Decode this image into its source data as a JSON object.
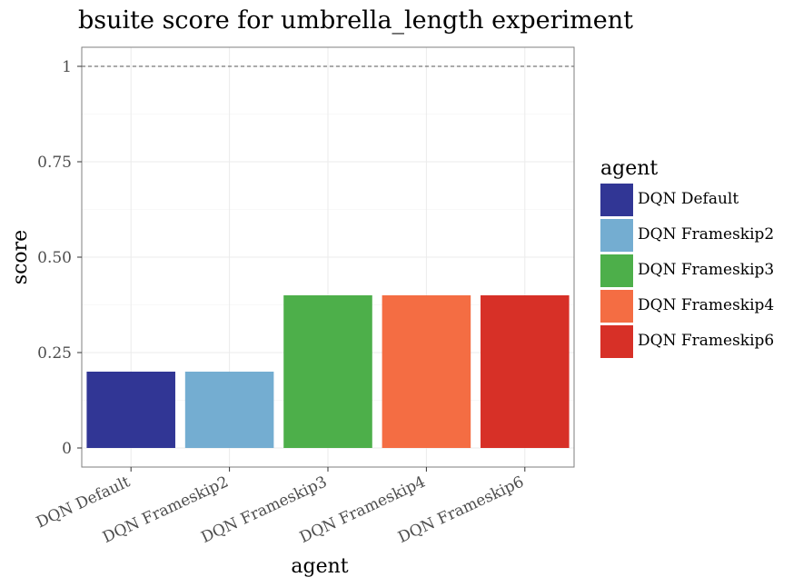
{
  "chart_data": {
    "type": "bar",
    "title": "bsuite score for umbrella_length experiment",
    "xlabel": "agent",
    "ylabel": "score",
    "categories": [
      "DQN Default",
      "DQN Frameskip2",
      "DQN Frameskip3",
      "DQN Frameskip4",
      "DQN Frameskip6"
    ],
    "values": [
      0.2,
      0.2,
      0.4,
      0.4,
      0.4
    ],
    "colors": [
      "#313695",
      "#74add1",
      "#4daf4a",
      "#f46d43",
      "#d73027"
    ],
    "ylim": [
      -0.05,
      1.05
    ],
    "yticks": [
      0,
      0.25,
      0.5,
      0.75,
      1
    ],
    "ytick_labels": [
      "0",
      "0.25",
      "0.50",
      "0.75",
      "1"
    ],
    "reference_line": {
      "y": 1,
      "style": "dashed",
      "color": "#555555"
    },
    "grid": true,
    "legend": {
      "title": "agent",
      "placement": "right",
      "entries": [
        "DQN Default",
        "DQN Frameskip2",
        "DQN Frameskip3",
        "DQN Frameskip4",
        "DQN Frameskip6"
      ]
    }
  }
}
